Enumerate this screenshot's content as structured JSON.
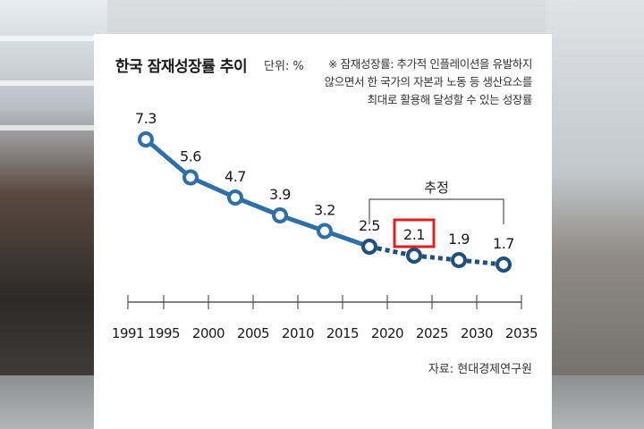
{
  "chart_data": {
    "type": "line",
    "title": "한국 잠재성장률 추이",
    "unit": "단위: %",
    "note": "※ 잠재성장률: 추가적 인플레이션을 유발하지 않으면서 한 국가의 자본과 노동 등 생산요소를 최대로 활용해 달성할 수 있는 성장률",
    "source": "자료: 현대경제연구원",
    "x_ticks": [
      "1991",
      "1995",
      "2000",
      "2005",
      "2010",
      "2015",
      "2020",
      "2025",
      "2030",
      "2035"
    ],
    "xlim": [
      1991,
      2035
    ],
    "ylim": [
      1.0,
      8.0
    ],
    "points": [
      {
        "x": 1993,
        "y": 7.3,
        "label": "7.3",
        "estimated": false
      },
      {
        "x": 1998,
        "y": 5.6,
        "label": "5.6",
        "estimated": false
      },
      {
        "x": 2003,
        "y": 4.7,
        "label": "4.7",
        "estimated": false
      },
      {
        "x": 2008,
        "y": 3.9,
        "label": "3.9",
        "estimated": false
      },
      {
        "x": 2013,
        "y": 3.2,
        "label": "3.2",
        "estimated": false
      },
      {
        "x": 2018,
        "y": 2.5,
        "label": "2.5",
        "estimated": true
      },
      {
        "x": 2023,
        "y": 2.1,
        "label": "2.1",
        "estimated": true,
        "highlighted": true
      },
      {
        "x": 2028,
        "y": 1.9,
        "label": "1.9",
        "estimated": true
      },
      {
        "x": 2033,
        "y": 1.7,
        "label": "1.7",
        "estimated": true
      }
    ],
    "estimate_bracket": {
      "label": "추정",
      "from": 2018,
      "to": 2033
    },
    "colors": {
      "line": "#2d6fa8",
      "estimated_line": "#1f4f7a",
      "marker_fill": "#ffffff",
      "highlight_box": "#e02020",
      "axis": "#555555"
    }
  }
}
